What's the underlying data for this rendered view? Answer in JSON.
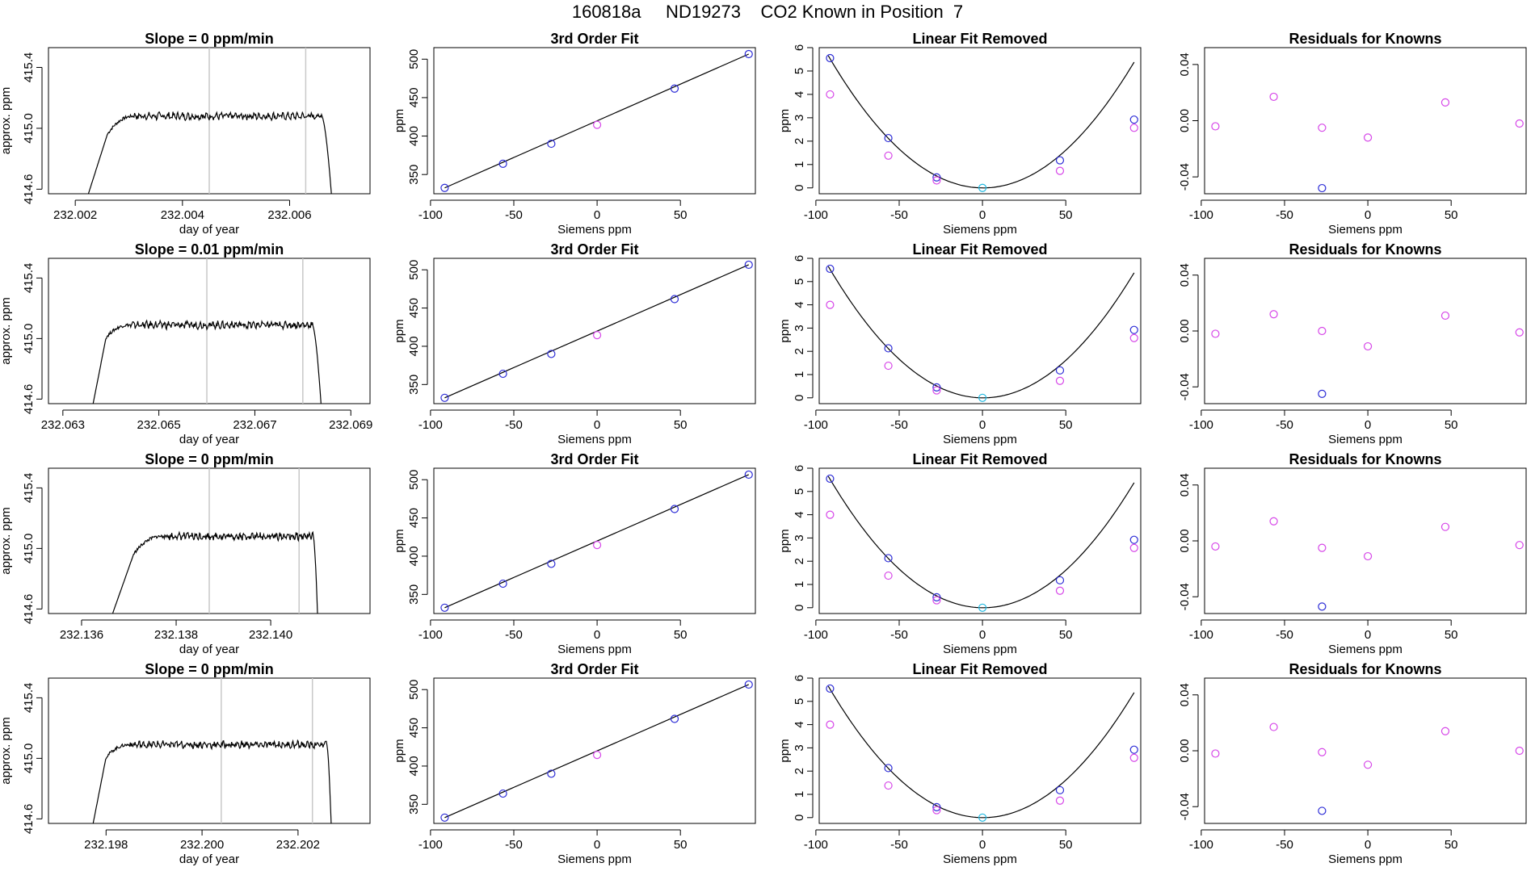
{
  "figure": {
    "title": "160818a     ND19273    CO2 Known in Position  7"
  },
  "colors": {
    "blue": "#2b2bd6",
    "magenta": "#d646e8",
    "cyan": "#1fb8e0",
    "line": "#000000",
    "vline": "#c8c8c8"
  },
  "chart_data": [
    {
      "type": "line",
      "row": 0,
      "title": "Slope =  0  ppm/min",
      "xlabel": "day of year",
      "ylabel": "approx. ppm",
      "xlim": [
        232.0015,
        232.0075
      ],
      "ylim": [
        414.57,
        415.53
      ],
      "xticks": [
        232.002,
        232.004,
        232.006
      ],
      "xtick_labels": [
        "232.002",
        "232.004",
        "232.006"
      ],
      "yticks": [
        414.6,
        415.0,
        415.4
      ],
      "ytick_labels": [
        "414.6",
        "415.0",
        "415.4"
      ],
      "vlines": [
        232.0045,
        232.0063
      ],
      "trace": {
        "start": 232.0022,
        "rise_end": 232.0026,
        "settle": 232.0031,
        "plateau_start": 415.0,
        "plateau": 415.08,
        "plateau_end": 232.0066,
        "drop_end": 232.0068
      }
    },
    {
      "type": "line",
      "row": 1,
      "title": "Slope =  0.01  ppm/min",
      "xlabel": "day of year",
      "ylabel": "approx. ppm",
      "xlim": [
        232.0627,
        232.0694
      ],
      "ylim": [
        414.57,
        415.53
      ],
      "xticks": [
        232.063,
        232.065,
        232.067,
        232.069
      ],
      "xtick_labels": [
        "232.063",
        "232.065",
        "232.067",
        "232.069"
      ],
      "yticks": [
        414.6,
        415.0,
        415.4
      ],
      "ytick_labels": [
        "414.6",
        "415.0",
        "415.4"
      ],
      "vlines": [
        232.066,
        232.068
      ],
      "trace": {
        "start": 232.0636,
        "rise_end": 232.0639,
        "settle": 232.0644,
        "plateau_start": 415.05,
        "plateau": 415.09,
        "plateau_end": 232.0682,
        "drop_end": 232.0684
      }
    },
    {
      "type": "line",
      "row": 2,
      "title": "Slope =  0  ppm/min",
      "xlabel": "day of year",
      "ylabel": "approx. ppm",
      "xlim": [
        232.1353,
        232.1421
      ],
      "ylim": [
        414.57,
        415.53
      ],
      "xticks": [
        232.136,
        232.138,
        232.14
      ],
      "xtick_labels": [
        "232.136",
        "232.138",
        "232.140"
      ],
      "yticks": [
        414.6,
        415.0,
        415.4
      ],
      "ytick_labels": [
        "414.6",
        "415.0",
        "415.4"
      ],
      "vlines": [
        232.1387,
        232.1406
      ],
      "trace": {
        "start": 232.1366,
        "rise_end": 232.1371,
        "settle": 232.1377,
        "plateau_start": 415.0,
        "plateau": 415.08,
        "plateau_end": 232.1409,
        "drop_end": 232.141
      }
    },
    {
      "type": "line",
      "row": 3,
      "title": "Slope =  0  ppm/min",
      "xlabel": "day of year",
      "ylabel": "approx. ppm",
      "xlim": [
        232.1968,
        232.2035
      ],
      "ylim": [
        414.57,
        415.53
      ],
      "xticks": [
        232.198,
        232.2,
        232.202
      ],
      "xtick_labels": [
        "232.198",
        "232.200",
        "232.202"
      ],
      "yticks": [
        414.6,
        415.0,
        415.4
      ],
      "ytick_labels": [
        "414.6",
        "415.0",
        "415.4"
      ],
      "vlines": [
        232.2004,
        232.2023
      ],
      "trace": {
        "start": 232.1977,
        "rise_end": 232.198,
        "settle": 232.1985,
        "plateau_start": 415.05,
        "plateau": 415.09,
        "plateau_end": 232.2026,
        "drop_end": 232.2027
      }
    },
    {
      "type": "scatter",
      "title": "3rd Order Fit",
      "rows": [
        0,
        1,
        2,
        3
      ],
      "xlabel": "Siemens ppm",
      "ylabel": "ppm",
      "xlim": [
        -98,
        95
      ],
      "ylim": [
        325,
        515
      ],
      "xticks": [
        -100,
        -50,
        0,
        50
      ],
      "xtick_labels": [
        "-100",
        "-50",
        "0",
        "50"
      ],
      "yticks": [
        350,
        400,
        450,
        500
      ],
      "ytick_labels": [
        "350",
        "400",
        "450",
        "500"
      ],
      "line": {
        "x0": -91.5,
        "y0": 332.6,
        "x1": 91,
        "y1": 506.6
      },
      "points": [
        {
          "x": -91.5,
          "y": 332.6,
          "color": "blue"
        },
        {
          "x": -56.5,
          "y": 364.0,
          "color": "blue"
        },
        {
          "x": -27.5,
          "y": 390.0,
          "color": "blue"
        },
        {
          "x": 0,
          "y": 414.6,
          "color": "magenta"
        },
        {
          "x": 46.5,
          "y": 461.7,
          "color": "blue"
        },
        {
          "x": 91,
          "y": 506.6,
          "color": "blue"
        }
      ]
    },
    {
      "type": "scatter",
      "title": "Linear Fit Removed",
      "rows": [
        0,
        1,
        2,
        3
      ],
      "xlabel": "Siemens ppm",
      "ylabel": "ppm",
      "xlim": [
        -98,
        95
      ],
      "ylim": [
        -0.25,
        6.0
      ],
      "xticks": [
        -100,
        -50,
        0,
        50
      ],
      "xtick_labels": [
        "-100",
        "-50",
        "0",
        "50"
      ],
      "yticks": [
        0,
        1,
        2,
        3,
        4,
        5,
        6
      ],
      "ytick_labels": [
        "0",
        "1",
        "2",
        "3",
        "4",
        "5",
        "6"
      ],
      "curve": {
        "a": 0.000655,
        "b": -0.0005,
        "x_from": -92.5,
        "x_to": 91
      },
      "points": [
        {
          "x": -91.5,
          "y": 5.55,
          "color": "blue"
        },
        {
          "x": -91.5,
          "y": 4.0,
          "color": "magenta"
        },
        {
          "x": -56.5,
          "y": 2.13,
          "color": "blue"
        },
        {
          "x": -56.5,
          "y": 1.38,
          "color": "magenta"
        },
        {
          "x": -27.5,
          "y": 0.45,
          "color": "blue"
        },
        {
          "x": -27.5,
          "y": 0.32,
          "color": "magenta"
        },
        {
          "x": 0,
          "y": 0.0,
          "color": "cyan"
        },
        {
          "x": 46.5,
          "y": 1.18,
          "color": "blue"
        },
        {
          "x": 46.5,
          "y": 0.73,
          "color": "magenta"
        },
        {
          "x": 91,
          "y": 2.92,
          "color": "blue"
        },
        {
          "x": 91,
          "y": 2.57,
          "color": "magenta"
        }
      ]
    },
    {
      "type": "scatter",
      "title": "Residuals for Knowns",
      "row": 0,
      "xlabel": "Siemens ppm",
      "ylabel": "",
      "xlim": [
        -98,
        95
      ],
      "ylim": [
        -0.052,
        0.052
      ],
      "xticks": [
        -100,
        -50,
        0,
        50
      ],
      "xtick_labels": [
        "-100",
        "-50",
        "0",
        "50"
      ],
      "yticks": [
        -0.04,
        0.0,
        0.04
      ],
      "ytick_labels": [
        "-0.04",
        "0.00",
        "0.04"
      ],
      "points": [
        {
          "x": -91.5,
          "y": -0.004,
          "color": "magenta"
        },
        {
          "x": -56.5,
          "y": 0.017,
          "color": "magenta"
        },
        {
          "x": -27.5,
          "y": -0.005,
          "color": "magenta"
        },
        {
          "x": -27.5,
          "y": -0.048,
          "color": "blue"
        },
        {
          "x": 0,
          "y": -0.012,
          "color": "magenta"
        },
        {
          "x": 46.5,
          "y": 0.013,
          "color": "magenta"
        },
        {
          "x": 91,
          "y": -0.002,
          "color": "magenta"
        }
      ]
    },
    {
      "type": "scatter",
      "title": "Residuals for Knowns",
      "row": 1,
      "xlabel": "Siemens ppm",
      "ylabel": "",
      "xlim": [
        -98,
        95
      ],
      "ylim": [
        -0.052,
        0.052
      ],
      "xticks": [
        -100,
        -50,
        0,
        50
      ],
      "xtick_labels": [
        "-100",
        "-50",
        "0",
        "50"
      ],
      "yticks": [
        -0.04,
        0.0,
        0.04
      ],
      "ytick_labels": [
        "-0.04",
        "0.00",
        "0.04"
      ],
      "points": [
        {
          "x": -91.5,
          "y": -0.002,
          "color": "magenta"
        },
        {
          "x": -56.5,
          "y": 0.012,
          "color": "magenta"
        },
        {
          "x": -27.5,
          "y": 0.0,
          "color": "magenta"
        },
        {
          "x": -27.5,
          "y": -0.045,
          "color": "blue"
        },
        {
          "x": 0,
          "y": -0.011,
          "color": "magenta"
        },
        {
          "x": 46.5,
          "y": 0.011,
          "color": "magenta"
        },
        {
          "x": 91,
          "y": -0.001,
          "color": "magenta"
        }
      ]
    },
    {
      "type": "scatter",
      "title": "Residuals for Knowns",
      "row": 2,
      "xlabel": "Siemens ppm",
      "ylabel": "",
      "xlim": [
        -98,
        95
      ],
      "ylim": [
        -0.052,
        0.052
      ],
      "xticks": [
        -100,
        -50,
        0,
        50
      ],
      "xtick_labels": [
        "-100",
        "-50",
        "0",
        "50"
      ],
      "yticks": [
        -0.04,
        0.0,
        0.04
      ],
      "ytick_labels": [
        "-0.04",
        "0.00",
        "0.04"
      ],
      "points": [
        {
          "x": -91.5,
          "y": -0.004,
          "color": "magenta"
        },
        {
          "x": -56.5,
          "y": 0.014,
          "color": "magenta"
        },
        {
          "x": -27.5,
          "y": -0.005,
          "color": "magenta"
        },
        {
          "x": -27.5,
          "y": -0.047,
          "color": "blue"
        },
        {
          "x": 0,
          "y": -0.011,
          "color": "magenta"
        },
        {
          "x": 46.5,
          "y": 0.01,
          "color": "magenta"
        },
        {
          "x": 91,
          "y": -0.003,
          "color": "magenta"
        }
      ]
    },
    {
      "type": "scatter",
      "title": "Residuals for Knowns",
      "row": 3,
      "xlabel": "Siemens ppm",
      "ylabel": "",
      "xlim": [
        -98,
        95
      ],
      "ylim": [
        -0.052,
        0.052
      ],
      "xticks": [
        -100,
        -50,
        0,
        50
      ],
      "xtick_labels": [
        "-100",
        "-50",
        "0",
        "50"
      ],
      "yticks": [
        -0.04,
        0.0,
        0.04
      ],
      "ytick_labels": [
        "-0.04",
        "0.00",
        "0.04"
      ],
      "points": [
        {
          "x": -91.5,
          "y": -0.002,
          "color": "magenta"
        },
        {
          "x": -56.5,
          "y": 0.017,
          "color": "magenta"
        },
        {
          "x": -27.5,
          "y": -0.001,
          "color": "magenta"
        },
        {
          "x": -27.5,
          "y": -0.043,
          "color": "blue"
        },
        {
          "x": 0,
          "y": -0.01,
          "color": "magenta"
        },
        {
          "x": 46.5,
          "y": 0.014,
          "color": "magenta"
        },
        {
          "x": 91,
          "y": 0.0,
          "color": "magenta"
        }
      ]
    }
  ]
}
